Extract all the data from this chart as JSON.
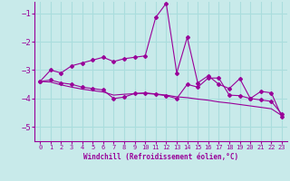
{
  "xlabel": "Windchill (Refroidissement éolien,°C)",
  "background_color": "#c8eaea",
  "grid_color": "#aadddd",
  "line_color": "#990099",
  "x_ticks": [
    0,
    1,
    2,
    3,
    4,
    5,
    6,
    7,
    8,
    9,
    10,
    11,
    12,
    13,
    14,
    15,
    16,
    17,
    18,
    19,
    20,
    21,
    22,
    23
  ],
  "y_ticks": [
    -5,
    -4,
    -3,
    -2,
    -1
  ],
  "ylim": [
    -5.5,
    -0.6
  ],
  "xlim": [
    -0.5,
    23.5
  ],
  "series1_x": [
    0,
    1,
    2,
    3,
    4,
    5,
    6,
    7,
    8,
    9,
    10,
    11,
    12,
    13,
    14,
    15,
    16,
    17,
    18,
    19,
    20,
    21,
    22,
    23
  ],
  "series1_y": [
    -3.4,
    -3.0,
    -3.1,
    -2.85,
    -2.75,
    -2.65,
    -2.55,
    -2.7,
    -2.6,
    -2.55,
    -2.5,
    -1.15,
    -0.65,
    -3.1,
    -1.85,
    -3.45,
    -3.2,
    -3.5,
    -3.65,
    -3.3,
    -4.0,
    -3.75,
    -3.8,
    -4.65
  ],
  "series2_x": [
    0,
    1,
    2,
    3,
    4,
    5,
    6,
    7,
    8,
    9,
    10,
    11,
    12,
    13,
    14,
    15,
    16,
    17,
    18,
    19,
    20,
    21,
    22,
    23
  ],
  "series2_y": [
    -3.4,
    -3.35,
    -3.45,
    -3.5,
    -3.6,
    -3.65,
    -3.7,
    -4.0,
    -3.95,
    -3.82,
    -3.82,
    -3.85,
    -3.9,
    -4.0,
    -3.5,
    -3.6,
    -3.28,
    -3.28,
    -3.88,
    -3.9,
    -4.0,
    -4.05,
    -4.1,
    -4.55
  ],
  "series3_x": [
    0,
    1,
    2,
    3,
    4,
    5,
    6,
    7,
    8,
    9,
    10,
    11,
    12,
    13,
    14,
    15,
    16,
    17,
    18,
    19,
    20,
    21,
    22,
    23
  ],
  "series3_y": [
    -3.4,
    -3.42,
    -3.52,
    -3.6,
    -3.67,
    -3.72,
    -3.77,
    -3.88,
    -3.85,
    -3.83,
    -3.8,
    -3.84,
    -3.88,
    -3.94,
    -3.97,
    -4.02,
    -4.06,
    -4.12,
    -4.16,
    -4.21,
    -4.26,
    -4.31,
    -4.36,
    -4.6
  ]
}
